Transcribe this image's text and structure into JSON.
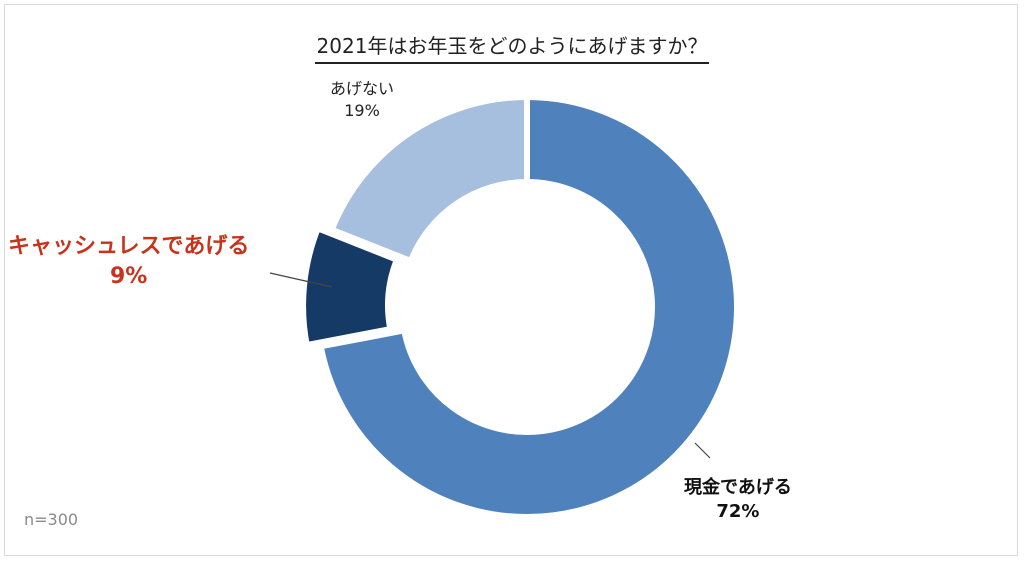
{
  "chart_data": {
    "type": "pie",
    "title": "2021年はお年玉をどのようにあげますか？",
    "slices": [
      {
        "label": "現金であげる",
        "value": 72,
        "value_label": "72%",
        "color": "#4f81bd"
      },
      {
        "label": "キャッシュレスであげる",
        "value": 9,
        "value_label": "9%",
        "color": "#163a66"
      },
      {
        "label": "あげない",
        "value": 19,
        "value_label": "19%",
        "color": "#a7bfdf"
      }
    ],
    "note": "n=300"
  }
}
